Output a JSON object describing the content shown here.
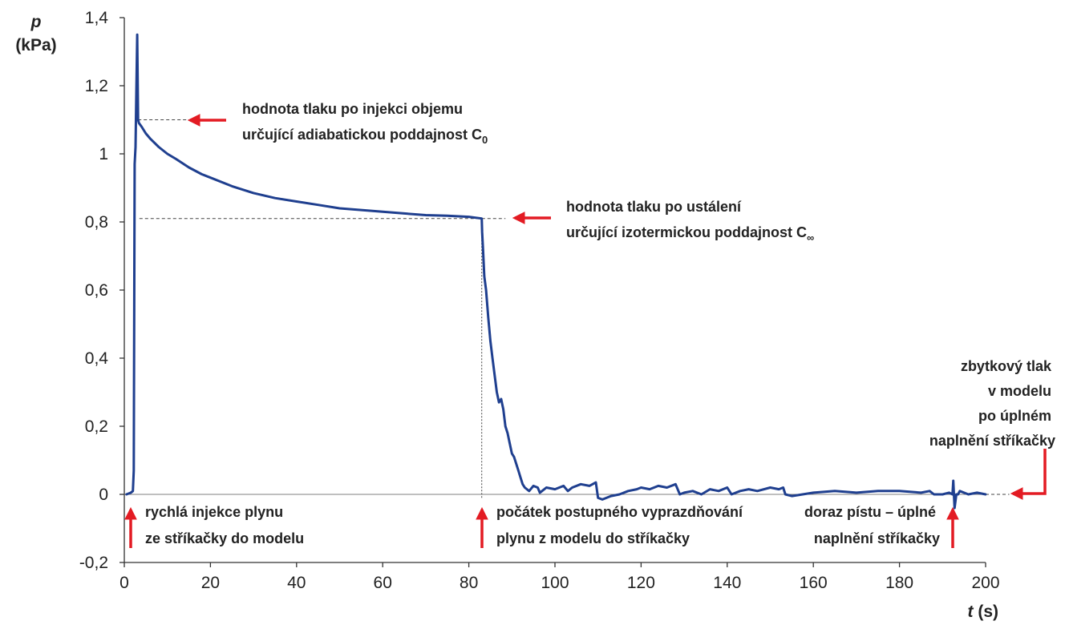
{
  "chart_data": {
    "type": "line",
    "title": "",
    "ylabel_symbol": "p",
    "ylabel_unit": "(kPa)",
    "xlabel_symbol": "t",
    "xlabel_unit": "(s)",
    "xlim": [
      0,
      200
    ],
    "ylim": [
      -0.2,
      1.4
    ],
    "xticks": [
      "0",
      "20",
      "40",
      "60",
      "80",
      "100",
      "120",
      "140",
      "160",
      "180",
      "200"
    ],
    "yticks": [
      "-0,2",
      "0",
      "0,2",
      "0,4",
      "0,6",
      "0,8",
      "1",
      "1,2",
      "1,4"
    ],
    "grid": false,
    "colors": {
      "series": "#1f3f8f",
      "arrow": "#e31b23",
      "reference": "#444444"
    },
    "series": [
      {
        "x": [
          0.5,
          1.5,
          2.0,
          2.2,
          2.4,
          2.6,
          2.8,
          3.0,
          3.2,
          3.4,
          4,
          5,
          6,
          8,
          10,
          12,
          15,
          18,
          20,
          25,
          30,
          35,
          40,
          45,
          50,
          55,
          60,
          65,
          70,
          75,
          80,
          83.0,
          83.1,
          83.3,
          83.6,
          84.0,
          84.5,
          85.0,
          85.5,
          86.0,
          86.5,
          87,
          87.5,
          88,
          88.5,
          89,
          89.5,
          90,
          90.5,
          91,
          91.5,
          92,
          92.5,
          93,
          94,
          95,
          96,
          96.5,
          97,
          98,
          100,
          102,
          103,
          104,
          106,
          108,
          109.5,
          110,
          111,
          113,
          115,
          117,
          119,
          120,
          122,
          124,
          126,
          128,
          129,
          130,
          132,
          134,
          136,
          138,
          140,
          141,
          143,
          145,
          147,
          150,
          152,
          153,
          153.5,
          155,
          160,
          165,
          170,
          175,
          180,
          185,
          187,
          188,
          190,
          191.5,
          192.3,
          192.5,
          192.8,
          193.2,
          193.6,
          194,
          196,
          198,
          200
        ],
        "y": [
          0.0,
          0.005,
          0.01,
          0.07,
          0.97,
          1.02,
          1.18,
          1.35,
          1.1,
          1.09,
          1.08,
          1.06,
          1.045,
          1.02,
          1.0,
          0.985,
          0.96,
          0.94,
          0.93,
          0.905,
          0.885,
          0.87,
          0.86,
          0.85,
          0.84,
          0.835,
          0.83,
          0.825,
          0.82,
          0.818,
          0.815,
          0.81,
          0.77,
          0.72,
          0.64,
          0.6,
          0.52,
          0.45,
          0.4,
          0.35,
          0.3,
          0.27,
          0.28,
          0.25,
          0.2,
          0.18,
          0.15,
          0.12,
          0.11,
          0.09,
          0.07,
          0.05,
          0.03,
          0.02,
          0.01,
          0.025,
          0.02,
          0.005,
          0.01,
          0.02,
          0.015,
          0.025,
          0.01,
          0.02,
          0.03,
          0.025,
          0.035,
          -0.01,
          -0.015,
          -0.005,
          0.0,
          0.01,
          0.015,
          0.02,
          0.015,
          0.025,
          0.02,
          0.03,
          0.0,
          0.005,
          0.01,
          0.0,
          0.015,
          0.01,
          0.02,
          0.0,
          0.01,
          0.015,
          0.01,
          0.02,
          0.015,
          0.02,
          0.0,
          -0.005,
          0.005,
          0.01,
          0.005,
          0.01,
          0.01,
          0.005,
          0.01,
          0.0,
          0.0,
          0.005,
          0.0,
          0.04,
          -0.04,
          0.0,
          0.0,
          0.01,
          0.0,
          0.005,
          0.0
        ]
      }
    ],
    "reference_lines": [
      {
        "y": 1.1,
        "x_from": 3.2,
        "x_to": 15
      },
      {
        "y": 0.81,
        "x_from": 3.5,
        "x_to": 88.5
      },
      {
        "y": 0.0,
        "x_from": 200,
        "x_to": 205.5
      }
    ],
    "vertical_marker": {
      "x": 83,
      "y_from": -0.01,
      "y_to": 0.81
    },
    "annotations": [
      {
        "id": "adiabatic",
        "lines": [
          "hodnota tlaku po injekci objemu",
          "určující adiabatickou poddajnost C"
        ],
        "subscript": "0"
      },
      {
        "id": "isothermal",
        "lines": [
          "hodnota tlaku po ustálení",
          "určující izotermickou poddajnost C"
        ],
        "subscript": "∞"
      },
      {
        "id": "injection",
        "lines": [
          "rychlá injekce plynu",
          "ze stříkačky do modelu"
        ]
      },
      {
        "id": "emptying",
        "lines": [
          "počátek postupného vyprazdňování",
          "plynu z modelu do stříkačky"
        ]
      },
      {
        "id": "stop",
        "lines": [
          "doraz pístu – úplné",
          "naplnění stříkačky"
        ]
      },
      {
        "id": "residual",
        "lines": [
          "zbytkový tlak",
          "v modelu",
          "po úplném",
          "naplnění stříkačky"
        ]
      }
    ]
  }
}
